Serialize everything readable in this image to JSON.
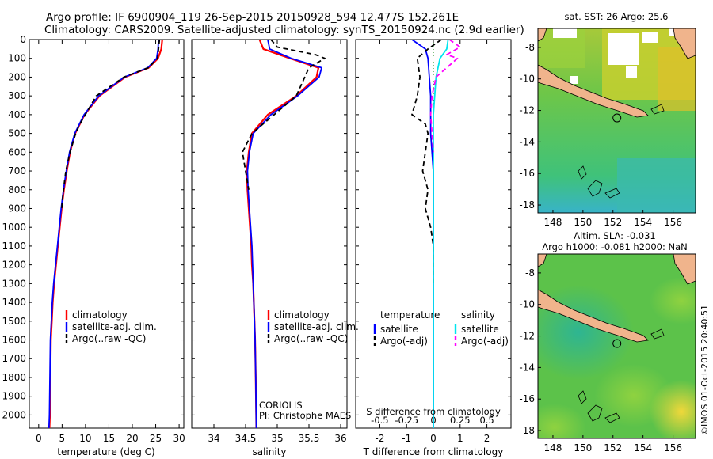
{
  "header": {
    "line1": "Argo profile: IF 6900904_119 26-Sep-2015 20150928_594 12.477S 152.261E",
    "line2": "Climatology: CARS2009. Satellite-adjusted climatology: synTS_20150924.nc (2.9d earlier)"
  },
  "colors": {
    "climatology": "#ff0000",
    "satellite_adj": "#0000ff",
    "argo": "#000000",
    "satellite_salinity": "#00e5ee",
    "argo_salinity": "#ff00ff",
    "land": "#f0b48c"
  },
  "chart_data": [
    {
      "type": "line",
      "xlabel": "temperature (deg C)",
      "xticks": [
        "0",
        "5",
        "10",
        "15",
        "20",
        "25",
        "30"
      ],
      "xlim": [
        -2,
        31
      ],
      "yticks": [
        "0",
        "100",
        "200",
        "300",
        "400",
        "500",
        "600",
        "700",
        "800",
        "900",
        "1000",
        "1100",
        "1200",
        "1300",
        "1400",
        "1500",
        "1600",
        "1700",
        "1800",
        "1900",
        "2000"
      ],
      "ylim": [
        2070,
        0
      ],
      "legend": [
        "climatology",
        "satellite-adj. clim.",
        "Argo(..raw -QC)"
      ],
      "series": [
        {
          "name": "climatology",
          "x": [
            26.4,
            26.2,
            25.5,
            23.5,
            18.5,
            13,
            9.8,
            7.8,
            6.7,
            6,
            5.4,
            4.9,
            4.5,
            4.1,
            3.7,
            3.3,
            3,
            2.8,
            2.6,
            2.5,
            2.4,
            2.3
          ],
          "y": [
            0,
            50,
            100,
            150,
            200,
            300,
            400,
            500,
            600,
            700,
            800,
            900,
            1000,
            1100,
            1200,
            1300,
            1400,
            1500,
            1600,
            1800,
            2000,
            2070
          ]
        },
        {
          "name": "satellite-adj. clim.",
          "x": [
            25.6,
            25.5,
            25.2,
            23.3,
            18.3,
            12.8,
            9.7,
            7.7,
            6.6,
            5.9,
            5.3,
            4.8,
            4.4,
            4.0,
            3.6,
            3.2,
            2.9,
            2.7,
            2.5,
            2.4,
            2.3,
            2.2
          ],
          "y": [
            0,
            50,
            100,
            150,
            200,
            300,
            400,
            500,
            600,
            700,
            800,
            900,
            1000,
            1100,
            1200,
            1300,
            1400,
            1500,
            1600,
            1800,
            2000,
            2070
          ]
        },
        {
          "name": "Argo(..raw -QC)",
          "x": [
            25.8,
            25.6,
            25.4,
            23.4,
            18.2,
            12.3,
            8.8,
            7.9,
            6.7,
            5.8,
            5.3,
            4.9
          ],
          "y": [
            0,
            50,
            100,
            150,
            200,
            300,
            450,
            500,
            600,
            700,
            800,
            900
          ]
        }
      ],
      "annotations": []
    },
    {
      "type": "line",
      "xlabel": "salinity",
      "xticks": [
        "34",
        "34.5",
        "35",
        "35.5",
        "36"
      ],
      "xlim": [
        33.65,
        36.1
      ],
      "yticks": [],
      "ylim": [
        2070,
        0
      ],
      "legend": [
        "climatology",
        "satellite-adj. clim.",
        "Argo(..raw -QC)"
      ],
      "series": [
        {
          "name": "climatology",
          "x": [
            34.72,
            34.78,
            35.2,
            35.65,
            35.62,
            35.3,
            34.85,
            34.6,
            34.55,
            34.52,
            34.53,
            34.55,
            34.57,
            34.59,
            34.6,
            34.62,
            34.63,
            34.64,
            34.65,
            34.66,
            34.67
          ],
          "y": [
            0,
            50,
            100,
            150,
            200,
            300,
            400,
            500,
            600,
            700,
            800,
            900,
            1000,
            1100,
            1200,
            1300,
            1400,
            1500,
            1600,
            1800,
            2070
          ]
        },
        {
          "name": "satellite-adj. clim.",
          "x": [
            34.85,
            34.88,
            35.22,
            35.7,
            35.66,
            35.32,
            34.9,
            34.62,
            34.56,
            34.53,
            34.54,
            34.56,
            34.58,
            34.6,
            34.61,
            34.62,
            34.63,
            34.64,
            34.65,
            34.66,
            34.67
          ],
          "y": [
            0,
            50,
            100,
            150,
            200,
            300,
            400,
            500,
            600,
            700,
            800,
            900,
            1000,
            1100,
            1200,
            1300,
            1400,
            1500,
            1600,
            1800,
            2070
          ]
        },
        {
          "name": "Argo(..raw -QC)",
          "x": [
            34.9,
            35.0,
            35.6,
            35.75,
            35.5,
            35.3,
            34.95,
            34.6,
            34.45,
            34.5,
            34.55
          ],
          "y": [
            0,
            40,
            80,
            100,
            150,
            300,
            400,
            500,
            600,
            700,
            800
          ]
        }
      ],
      "annotations": [
        "CORIOLIS",
        "PI: Christophe MAES"
      ]
    },
    {
      "type": "line",
      "xlabel": "T difference from climatology",
      "xlabel2": "S difference from climatology",
      "xticks": [
        "-2",
        "-1",
        "0",
        "1",
        "2"
      ],
      "xticks2": [
        "-0.5",
        "-0.25",
        "0",
        "0.25",
        "0.5"
      ],
      "xlim": [
        -2.9,
        2.9
      ],
      "yticks": [],
      "ylim": [
        2070,
        0
      ],
      "legend_temperature_title": "temperature",
      "legend_salinity_title": "salinity",
      "legend_temperature": [
        "satellite",
        "Argo(-adj)"
      ],
      "legend_salinity": [
        "satellite",
        "Argo(-adj)"
      ],
      "series": [
        {
          "name": "satellite",
          "x": [
            -0.8,
            -0.3,
            -0.2,
            -0.15,
            -0.1,
            -0.1,
            -0.1,
            -0.05,
            0,
            0,
            0,
            0,
            0,
            0
          ],
          "y": [
            0,
            50,
            100,
            200,
            300,
            400,
            500,
            600,
            700,
            900,
            1200,
            1500,
            1800,
            2070
          ]
        },
        {
          "name": "Argo(-adj)",
          "x": [
            0.3,
            -0.2,
            -0.6,
            -0.5,
            -0.6,
            -0.8,
            -0.3,
            -0.2,
            -0.3,
            -0.4,
            -0.2,
            -0.3,
            -0.1,
            0,
            0,
            0
          ],
          "y": [
            0,
            50,
            100,
            200,
            300,
            400,
            450,
            500,
            600,
            700,
            800,
            900,
            1000,
            1100,
            1200,
            1300
          ]
        },
        {
          "name": "satellite",
          "x": [
            0.55,
            0.5,
            0.25,
            0.1,
            0.05,
            0,
            0,
            0,
            0,
            0,
            0
          ],
          "y": [
            0,
            50,
            100,
            200,
            300,
            400,
            500,
            700,
            1000,
            1500,
            2070
          ]
        },
        {
          "name": "Argo(-adj)",
          "x": [
            0.6,
            1.0,
            0.5,
            0.9,
            0.1,
            -0.05,
            -0.1,
            -0.05,
            0
          ],
          "y": [
            0,
            40,
            80,
            100,
            200,
            300,
            400,
            500,
            600
          ]
        }
      ],
      "annotations": []
    },
    {
      "type": "heatmap",
      "title": "sat. SST: 26 Argo: 25.6",
      "xticks": [
        "148",
        "150",
        "152",
        "154",
        "156"
      ],
      "yticks": [
        "-8",
        "-10",
        "-12",
        "-14",
        "-16",
        "-18"
      ],
      "xlim": [
        147,
        157.5
      ],
      "ylim": [
        -18.5,
        -6.8
      ],
      "marker": {
        "lon": 152.261,
        "lat": -12.477
      }
    },
    {
      "type": "heatmap",
      "title": "Altim. SLA: -0.031",
      "subtitle": "Argo h1000: -0.081 h2000: NaN",
      "xticks": [
        "148",
        "150",
        "152",
        "154",
        "156"
      ],
      "yticks": [
        "-8",
        "-10",
        "-12",
        "-14",
        "-16",
        "-18"
      ],
      "xlim": [
        147,
        157.5
      ],
      "ylim": [
        -18.5,
        -6.8
      ],
      "marker": {
        "lon": 152.261,
        "lat": -12.477
      }
    }
  ],
  "credit": "©IMOS 01-Oct-2015 20:40:51"
}
